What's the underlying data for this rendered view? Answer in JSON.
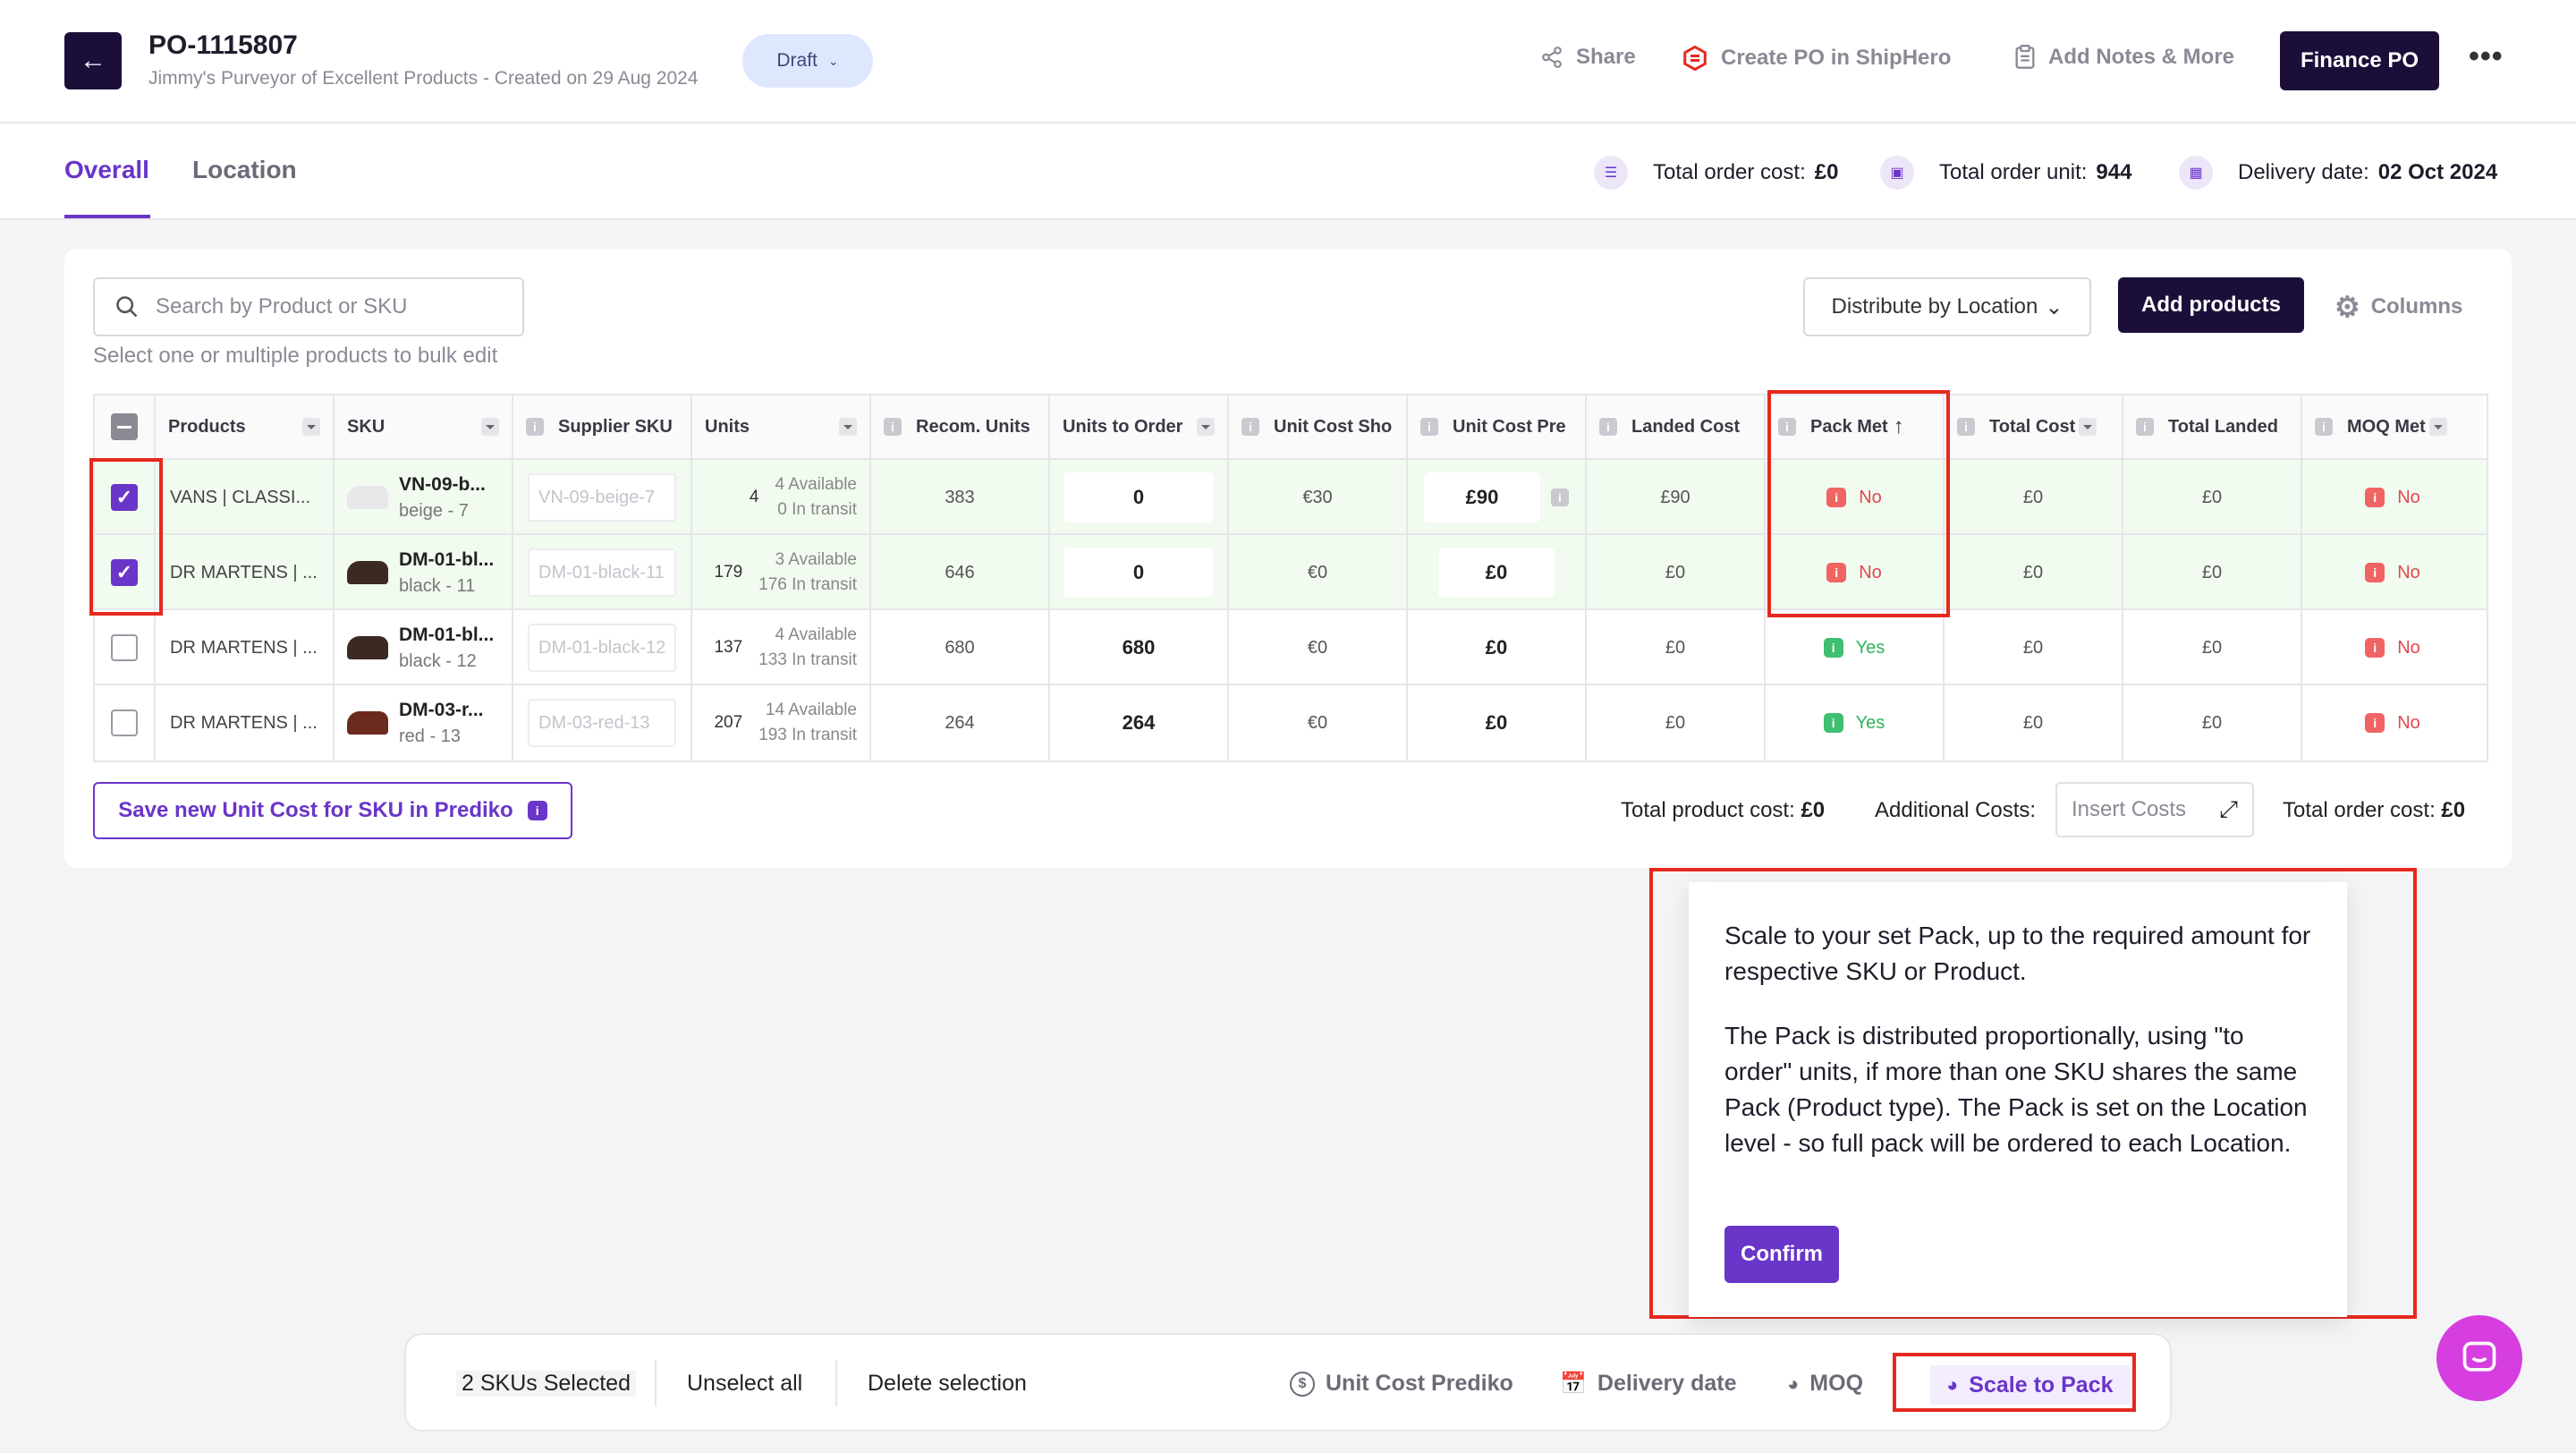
{
  "header": {
    "po_number": "PO-1115807",
    "subtitle": "Jimmy's Purveyor of Excellent Products - Created on 29 Aug 2024",
    "status": "Draft",
    "actions": {
      "share": "Share",
      "create_po": "Create PO in ShipHero",
      "add_notes": "Add Notes & More",
      "finance": "Finance PO"
    }
  },
  "tabs": [
    {
      "label": "Overall",
      "active": true
    },
    {
      "label": "Location",
      "active": false
    }
  ],
  "summary": {
    "total_cost_label": "Total order cost:",
    "total_cost_value": "£0",
    "total_unit_label": "Total order unit:",
    "total_unit_value": "944",
    "delivery_label": "Delivery date:",
    "delivery_value": "02 Oct 2024"
  },
  "toolbar": {
    "search_placeholder": "Search by Product or SKU",
    "bulk_hint": "Select one or multiple products to bulk edit",
    "distribute": "Distribute by Location",
    "add_products": "Add products",
    "columns": "Columns"
  },
  "table": {
    "headers": [
      "Products",
      "SKU",
      "Supplier SKU",
      "Units",
      "Recom. Units",
      "Units to Order",
      "Unit Cost Sho",
      "Unit Cost Pre",
      "Landed Cost",
      "Pack Met",
      "Total Cost",
      "Total Landed",
      "MOQ Met"
    ],
    "rows": [
      {
        "selected": true,
        "product": "VANS | CLASSI...",
        "sku": "VN-09-b...",
        "variant": "beige - 7",
        "supplier_sku": "VN-09-beige-7",
        "units": "4",
        "available": "4 Available",
        "transit": "0 In transit",
        "recom": "383",
        "to_order": "0",
        "cost_sho": "€30",
        "cost_pre": "£90",
        "landed": "£90",
        "pack_met": "No",
        "total_cost": "£0",
        "total_landed": "£0",
        "moq_met": "No",
        "shoe_color": "#e8e8ea"
      },
      {
        "selected": true,
        "product": "DR MARTENS | ...",
        "sku": "DM-01-bl...",
        "variant": "black - 11",
        "supplier_sku": "DM-01-black-11",
        "units": "179",
        "available": "3 Available",
        "transit": "176 In transit",
        "recom": "646",
        "to_order": "0",
        "cost_sho": "€0",
        "cost_pre": "£0",
        "landed": "£0",
        "pack_met": "No",
        "total_cost": "£0",
        "total_landed": "£0",
        "moq_met": "No",
        "shoe_color": "#3a2a22"
      },
      {
        "selected": false,
        "product": "DR MARTENS | ...",
        "sku": "DM-01-bl...",
        "variant": "black - 12",
        "supplier_sku": "DM-01-black-12",
        "units": "137",
        "available": "4 Available",
        "transit": "133 In transit",
        "recom": "680",
        "to_order": "680",
        "cost_sho": "€0",
        "cost_pre": "£0",
        "landed": "£0",
        "pack_met": "Yes",
        "total_cost": "£0",
        "total_landed": "£0",
        "moq_met": "No",
        "shoe_color": "#3a2a22"
      },
      {
        "selected": false,
        "product": "DR MARTENS | ...",
        "sku": "DM-03-r...",
        "variant": "red - 13",
        "supplier_sku": "DM-03-red-13",
        "units": "207",
        "available": "14 Available",
        "transit": "193 In transit",
        "recom": "264",
        "to_order": "264",
        "cost_sho": "€0",
        "cost_pre": "£0",
        "landed": "£0",
        "pack_met": "Yes",
        "total_cost": "£0",
        "total_landed": "£0",
        "moq_met": "No",
        "shoe_color": "#6b2a1e"
      }
    ]
  },
  "footer": {
    "save_unit_cost": "Save new Unit Cost for SKU in Prediko",
    "total_product_label": "Total product cost:",
    "total_product_value": "£0",
    "additional_label": "Additional Costs:",
    "insert_costs": "Insert Costs",
    "total_order_label": "Total order cost:",
    "total_order_value": "£0"
  },
  "popover": {
    "para1": "Scale to your set Pack, up to the required amount for respective SKU or Product.",
    "para2": "The Pack is distributed proportionally, using \"to order\" units, if more than one SKU shares the same Pack (Product type). The Pack is set on the Location level - so full pack will be ordered to each Location.",
    "confirm": "Confirm"
  },
  "bulk_bar": {
    "selected": "2 SKUs Selected",
    "unselect": "Unselect all",
    "delete": "Delete selection",
    "unit_cost": "Unit Cost Prediko",
    "delivery": "Delivery date",
    "moq": "MOQ",
    "scale": "Scale to Pack"
  },
  "colors": {
    "accent": "#6a35c9",
    "dark": "#1b0f3a",
    "highlight": "#e5291c"
  }
}
